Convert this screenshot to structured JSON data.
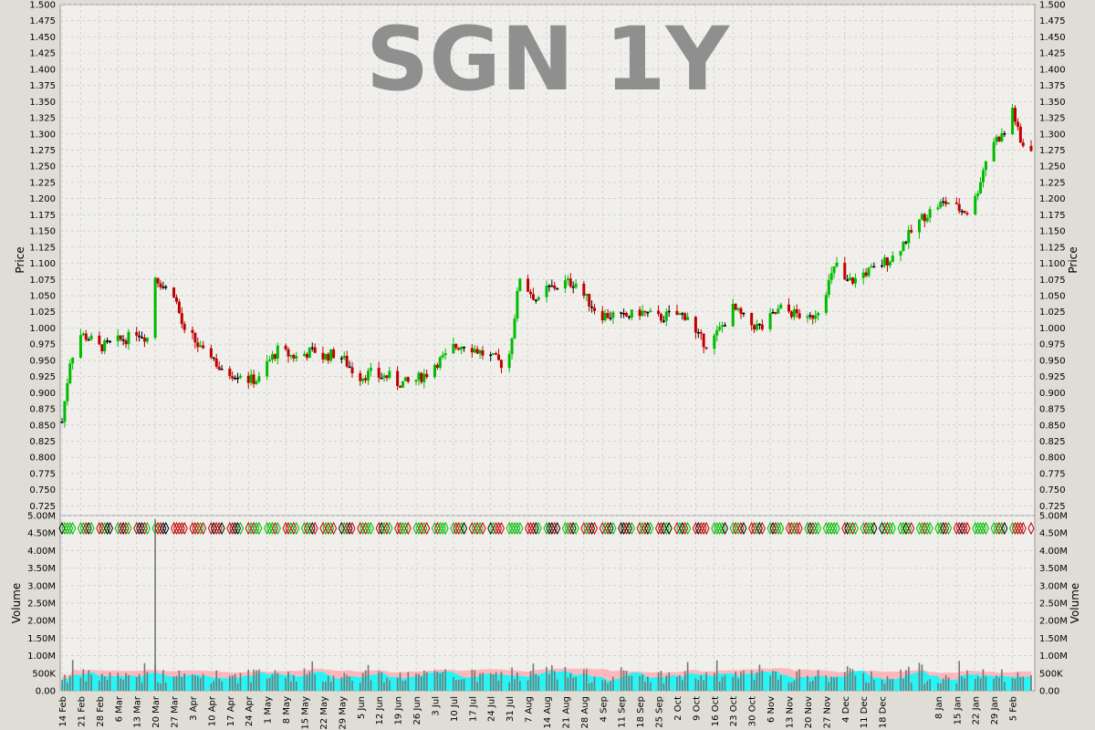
{
  "chart_data": {
    "type": "candlestick",
    "title": "SGN 1Y",
    "colors": {
      "up": "#00bb00",
      "down": "#c00000",
      "flat": "#000000",
      "volume_ma_fast": "#00ffff",
      "volume_ma_slow": "#ffb0b8",
      "volume_bar": "#777777",
      "background": "#f0efeb",
      "grid": "#c8c8c8",
      "title": "#8f8f8f"
    },
    "price_panel": {
      "ylabel": "Price",
      "ylim": [
        0.71,
        1.5
      ],
      "yticks": [
        "1.500",
        "1.475",
        "1.450",
        "1.425",
        "1.400",
        "1.375",
        "1.350",
        "1.325",
        "1.300",
        "1.275",
        "1.250",
        "1.225",
        "1.200",
        "1.175",
        "1.150",
        "1.125",
        "1.100",
        "1.075",
        "1.050",
        "1.025",
        "1.000",
        "0.975",
        "0.950",
        "0.925",
        "0.900",
        "0.875",
        "0.850",
        "0.825",
        "0.800",
        "0.775",
        "0.750",
        "0.725"
      ],
      "close_path": [
        [
          "14 Feb",
          0.855
        ],
        [
          "17 Feb",
          0.95
        ],
        [
          "21 Feb",
          0.99
        ],
        [
          "24 Feb",
          0.985
        ],
        [
          "28 Feb",
          0.97
        ],
        [
          "3 Mar",
          0.975
        ],
        [
          "6 Mar",
          0.98
        ],
        [
          "10 Mar",
          0.985
        ],
        [
          "13 Mar",
          0.995
        ],
        [
          "17 Mar",
          0.985
        ],
        [
          "20 Mar",
          1.08
        ],
        [
          "24 Mar",
          1.06
        ],
        [
          "27 Mar",
          1.055
        ],
        [
          "31 Mar",
          0.99
        ],
        [
          "3 Apr",
          0.985
        ],
        [
          "7 Apr",
          0.96
        ],
        [
          "10 Apr",
          0.96
        ],
        [
          "14 Apr",
          0.93
        ],
        [
          "17 Apr",
          0.93
        ],
        [
          "21 Apr",
          0.93
        ],
        [
          "24 Apr",
          0.92
        ],
        [
          "28 Apr",
          0.92
        ],
        [
          "1 May",
          0.945
        ],
        [
          "5 May",
          0.965
        ],
        [
          "8 May",
          0.96
        ],
        [
          "12 May",
          0.955
        ],
        [
          "15 May",
          0.96
        ],
        [
          "19 May",
          0.965
        ],
        [
          "22 May",
          0.955
        ],
        [
          "26 May",
          0.96
        ],
        [
          "29 May",
          0.955
        ],
        [
          "2 Jun",
          0.935
        ],
        [
          "5 Jun",
          0.925
        ],
        [
          "9 Jun",
          0.93
        ],
        [
          "12 Jun",
          0.925
        ],
        [
          "16 Jun",
          0.925
        ],
        [
          "19 Jun",
          0.915
        ],
        [
          "23 Jun",
          0.915
        ],
        [
          "26 Jun",
          0.92
        ],
        [
          "30 Jun",
          0.93
        ],
        [
          "3 Jul",
          0.945
        ],
        [
          "7 Jul",
          0.955
        ],
        [
          "10 Jul",
          0.97
        ],
        [
          "14 Jul",
          0.975
        ],
        [
          "17 Jul",
          0.97
        ],
        [
          "21 Jul",
          0.96
        ],
        [
          "24 Jul",
          0.955
        ],
        [
          "28 Jul",
          0.945
        ],
        [
          "31 Jul",
          0.96
        ],
        [
          "4 Aug",
          1.08
        ],
        [
          "7 Aug",
          1.06
        ],
        [
          "11 Aug",
          1.04
        ],
        [
          "14 Aug",
          1.06
        ],
        [
          "18 Aug",
          1.065
        ],
        [
          "21 Aug",
          1.07
        ],
        [
          "25 Aug",
          1.07
        ],
        [
          "28 Aug",
          1.05
        ],
        [
          "1 Sep",
          1.03
        ],
        [
          "4 Sep",
          1.02
        ],
        [
          "8 Sep",
          1.02
        ],
        [
          "11 Sep",
          1.015
        ],
        [
          "15 Sep",
          1.02
        ],
        [
          "18 Sep",
          1.025
        ],
        [
          "22 Sep",
          1.02
        ],
        [
          "25 Sep",
          1.015
        ],
        [
          "29 Sep",
          1.02
        ],
        [
          "2 Oct",
          1.02
        ],
        [
          "6 Oct",
          1.02
        ],
        [
          "9 Oct",
          0.99
        ],
        [
          "13 Oct",
          0.975
        ],
        [
          "16 Oct",
          0.985
        ],
        [
          "20 Oct",
          1.01
        ],
        [
          "23 Oct",
          1.03
        ],
        [
          "27 Oct",
          1.015
        ],
        [
          "30 Oct",
          1.005
        ],
        [
          "3 Nov",
          1.0
        ],
        [
          "6 Nov",
          1.015
        ],
        [
          "10 Nov",
          1.03
        ],
        [
          "13 Nov",
          1.025
        ],
        [
          "17 Nov",
          1.02
        ],
        [
          "20 Nov",
          1.01
        ],
        [
          "24 Nov",
          1.03
        ],
        [
          "27 Nov",
          1.06
        ],
        [
          "1 Dec",
          1.1
        ],
        [
          "4 Dec",
          1.07
        ],
        [
          "8 Dec",
          1.075
        ],
        [
          "11 Dec",
          1.085
        ],
        [
          "15 Dec",
          1.09
        ],
        [
          "18 Dec",
          1.1
        ],
        [
          "22 Dec",
          1.11
        ],
        [
          "2 Jan",
          1.17
        ],
        [
          "5 Jan",
          1.18
        ],
        [
          "8 Jan",
          1.19
        ],
        [
          "12 Jan",
          1.195
        ],
        [
          "15 Jan",
          1.185
        ],
        [
          "19 Jan",
          1.18
        ],
        [
          "22 Jan",
          1.2
        ],
        [
          "26 Jan",
          1.26
        ],
        [
          "29 Jan",
          1.29
        ],
        [
          "2 Feb",
          1.3
        ],
        [
          "5 Feb",
          1.34
        ],
        [
          "8 Feb",
          1.285
        ],
        [
          "12 Feb",
          1.28
        ]
      ]
    },
    "volume_panel": {
      "ylabel": "Volume",
      "ylim": [
        0,
        5000000
      ],
      "yticks": [
        "5.00M",
        "4.50M",
        "4.00M",
        "3.50M",
        "3.00M",
        "2.50M",
        "2.00M",
        "1.50M",
        "1.00M",
        "500K",
        "0.00"
      ],
      "spike": {
        "date": "20 Mar",
        "value": 4900000
      },
      "typical_range": [
        200000,
        900000
      ]
    },
    "x_axis": {
      "labels": [
        "14 Feb",
        "21 Feb",
        "28 Feb",
        "6 Mar",
        "13 Mar",
        "20 Mar",
        "27 Mar",
        "3 Apr",
        "10 Apr",
        "17 Apr",
        "24 Apr",
        "1 May",
        "8 May",
        "15 May",
        "22 May",
        "29 May",
        "5 Jun",
        "12 Jun",
        "19 Jun",
        "26 Jun",
        "3 Jul",
        "10 Jul",
        "17 Jul",
        "24 Jul",
        "31 Jul",
        "7 Aug",
        "14 Aug",
        "21 Aug",
        "28 Aug",
        "4 Sep",
        "11 Sep",
        "18 Sep",
        "25 Sep",
        "2 Oct",
        "9 Oct",
        "16 Oct",
        "23 Oct",
        "30 Oct",
        "6 Nov",
        "13 Nov",
        "20 Nov",
        "27 Nov",
        "4 Dec",
        "11 Dec",
        "18 Dec",
        "8 Jan",
        "15 Jan",
        "22 Jan",
        "29 Jan",
        "5 Feb"
      ],
      "label_dates": [
        "14 Feb",
        "21 Feb",
        "28 Feb",
        "6 Mar",
        "13 Mar",
        "20 Mar",
        "27 Mar",
        "3 Apr",
        "10 Apr",
        "17 Apr",
        "24 Apr",
        "1 May",
        "8 May",
        "15 May",
        "22 May",
        "29 May",
        "5 Jun",
        "12 Jun",
        "19 Jun",
        "26 Jun",
        "3 Jul",
        "10 Jul",
        "17 Jul",
        "24 Jul",
        "31 Jul",
        "7 Aug",
        "14 Aug",
        "21 Aug",
        "28 Aug",
        "4 Sep",
        "11 Sep",
        "18 Sep",
        "25 Sep",
        "2 Oct",
        "9 Oct",
        "16 Oct",
        "23 Oct",
        "30 Oct",
        "6 Nov",
        "13 Nov",
        "20 Nov",
        "27 Nov",
        "4 Dec",
        "11 Dec",
        "18 Dec",
        "8 Jan",
        "15 Jan",
        "22 Jan",
        "29 Jan",
        "5 Feb"
      ]
    }
  }
}
